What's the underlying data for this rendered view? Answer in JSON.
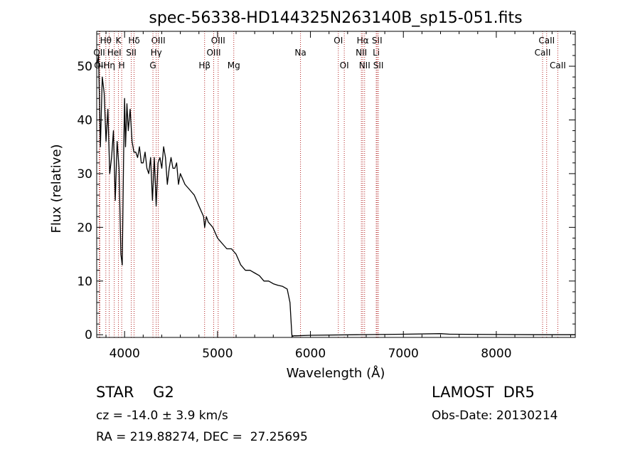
{
  "chart_data": {
    "type": "line",
    "title": "spec-56338-HD144325N263140B_sp15-051.fits",
    "xlabel": "Wavelength (Å)",
    "ylabel": "Flux (relative)",
    "xlim": [
      3700,
      8850
    ],
    "ylim": [
      -0.5,
      56.5
    ],
    "xticks": [
      4000,
      5000,
      6000,
      7000,
      8000
    ],
    "yticks": [
      0,
      10,
      20,
      30,
      40,
      50
    ],
    "grid": false,
    "line_color": "#000000",
    "marker_color": "#b22222",
    "series": [
      {
        "x": [
          3700,
          3720,
          3740,
          3760,
          3780,
          3800,
          3820,
          3840,
          3860,
          3880,
          3900,
          3920,
          3940,
          3960,
          3975,
          3990,
          4000,
          4010,
          4025,
          4040,
          4060,
          4080,
          4100,
          4120,
          4140,
          4160,
          4180,
          4200,
          4220,
          4240,
          4260,
          4280,
          4300,
          4320,
          4340,
          4360,
          4380,
          4400,
          4420,
          4440,
          4460,
          4480,
          4500,
          4520,
          4540,
          4560,
          4580,
          4600,
          4650,
          4700,
          4750,
          4800,
          4850,
          4862,
          4880,
          4900,
          4950,
          5000,
          5050,
          5100,
          5150,
          5200,
          5250,
          5300,
          5350,
          5400,
          5450,
          5500,
          5550,
          5600,
          5650,
          5700,
          5750,
          5780,
          5790,
          5800,
          5810,
          5820,
          5850,
          6000,
          6500,
          7000,
          7400,
          7500,
          8000,
          8500,
          8850
        ],
        "y": [
          50,
          52,
          35,
          48,
          45,
          36,
          42,
          30,
          33,
          38,
          25,
          36,
          31,
          15,
          13,
          34,
          44,
          35,
          43,
          38,
          42,
          36,
          34,
          34,
          33,
          35,
          32,
          32,
          34,
          31,
          30,
          33,
          25,
          33,
          24,
          32,
          33,
          31,
          35,
          33,
          28,
          31,
          33,
          31,
          31,
          32,
          28,
          30,
          28,
          27,
          26,
          24,
          22,
          20,
          22,
          21,
          20,
          18,
          17,
          16,
          16,
          15,
          13,
          12,
          12,
          11.5,
          11,
          10,
          10,
          9.5,
          9.2,
          9,
          8.5,
          6,
          3,
          0,
          -0.3,
          -0.2,
          -0.2,
          -0.1,
          0,
          0.1,
          0.2,
          0.1,
          0.05,
          0,
          0
        ]
      }
    ],
    "line_markers": [
      {
        "label": "Hθ",
        "x": 3798,
        "row": 0
      },
      {
        "label": "K",
        "x": 3934,
        "row": 0
      },
      {
        "label": "Hδ",
        "x": 4102,
        "row": 0
      },
      {
        "label": "OIII",
        "x": 4363,
        "row": 0
      },
      {
        "label": "OIII",
        "x": 5007,
        "row": 0
      },
      {
        "label": "OI",
        "x": 6300,
        "row": 0
      },
      {
        "label": "Hα",
        "x": 6563,
        "row": 0
      },
      {
        "label": "SII",
        "x": 6717,
        "row": 0
      },
      {
        "label": "CaII",
        "x": 8542,
        "row": 0
      },
      {
        "label": "OII",
        "x": 3727,
        "row": 1
      },
      {
        "label": "HeI",
        "x": 3889,
        "row": 1
      },
      {
        "label": "SII",
        "x": 4072,
        "row": 1
      },
      {
        "label": "Hγ",
        "x": 4340,
        "row": 1
      },
      {
        "label": "OIII",
        "x": 4959,
        "row": 1
      },
      {
        "label": "Na",
        "x": 5893,
        "row": 1
      },
      {
        "label": "NII",
        "x": 6548,
        "row": 1
      },
      {
        "label": "Li",
        "x": 6708,
        "row": 1
      },
      {
        "label": "CaII",
        "x": 8498,
        "row": 1
      },
      {
        "label": "OII",
        "x": 3735,
        "row": 2
      },
      {
        "label": "Hη",
        "x": 3835,
        "row": 2
      },
      {
        "label": "H",
        "x": 3969,
        "row": 2
      },
      {
        "label": "G",
        "x": 4305,
        "row": 2
      },
      {
        "label": "Hβ",
        "x": 4861,
        "row": 2
      },
      {
        "label": "Mg",
        "x": 5175,
        "row": 2
      },
      {
        "label": "OI",
        "x": 6364,
        "row": 2
      },
      {
        "label": "NII",
        "x": 6583,
        "row": 2
      },
      {
        "label": "SII",
        "x": 6731,
        "row": 2
      },
      {
        "label": "CaII",
        "x": 8662,
        "row": 2
      }
    ]
  },
  "info": {
    "class_text": "STAR    G2",
    "survey_text": "LAMOST  DR5",
    "cz_text": "cz = -14.0 ± 3.9 km/s",
    "obs_date_text": "Obs-Date: 20130214",
    "radec_text": "RA = 219.88274, DEC =  27.25695"
  }
}
